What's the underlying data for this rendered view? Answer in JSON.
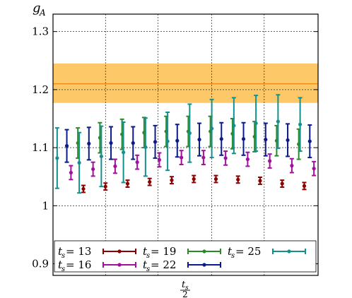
{
  "chart_data": {
    "type": "scatter",
    "title": "",
    "ylabel": "g",
    "ylabel_sub": "A",
    "xlabel_num": "t",
    "xlabel_num_sub": "s",
    "xlabel_den": "2",
    "ylim": [
      0.88,
      1.33
    ],
    "yticks": [
      0.9,
      1,
      1.1,
      1.2,
      1.3
    ],
    "ytick_labels": [
      "0.9",
      "1",
      "1.1",
      "1.2",
      "1.3"
    ],
    "grid": true,
    "legend_placement": "bottom",
    "band": {
      "center": 1.21,
      "low": 1.177,
      "high": 1.245,
      "color": "#fdbf4e",
      "line_color": "#ef8a1a"
    },
    "series": [
      {
        "name": "t_s = 13",
        "label_var": "t",
        "label_sub": "s",
        "label_val": " = 13",
        "color": "#8b0000",
        "x": [
          2.2,
          3.8,
          5.4,
          7.0,
          8.6,
          10.2,
          11.8,
          13.4,
          15.0,
          16.6,
          18.2
        ],
        "y": [
          1.029,
          1.033,
          1.038,
          1.041,
          1.044,
          1.046,
          1.046,
          1.045,
          1.043,
          1.038,
          1.034
        ],
        "err": [
          0.006,
          0.006,
          0.006,
          0.006,
          0.006,
          0.006,
          0.006,
          0.006,
          0.006,
          0.006,
          0.006
        ]
      },
      {
        "name": "t_s = 16",
        "label_var": "t",
        "label_sub": "s",
        "label_val": " = 16",
        "color": "#a0109c",
        "x": [
          1.3,
          2.9,
          4.5,
          6.1,
          7.7,
          9.3,
          10.9,
          12.5,
          14.1,
          15.7,
          17.3,
          18.9
        ],
        "y": [
          1.057,
          1.063,
          1.068,
          1.075,
          1.079,
          1.083,
          1.083,
          1.082,
          1.08,
          1.077,
          1.069,
          1.064
        ],
        "err": [
          0.012,
          0.012,
          0.012,
          0.012,
          0.012,
          0.012,
          0.012,
          0.012,
          0.012,
          0.012,
          0.012,
          0.012
        ]
      },
      {
        "name": "t_s = 19",
        "label_var": "t",
        "label_sub": "s",
        "label_val": " = 19",
        "color": "#2a8a2a",
        "x": [
          1.8,
          3.4,
          5.0,
          6.6,
          8.2,
          9.8,
          11.4,
          13.0,
          14.6,
          16.2,
          17.8
        ],
        "y": [
          1.108,
          1.117,
          1.123,
          1.126,
          1.128,
          1.128,
          1.128,
          1.124,
          1.119,
          1.112,
          1.106
        ],
        "err": [
          0.026,
          0.026,
          0.026,
          0.026,
          0.026,
          0.026,
          0.026,
          0.026,
          0.026,
          0.026,
          0.026
        ]
      },
      {
        "name": "t_s = 22",
        "label_var": "t",
        "label_sub": "s",
        "label_val": " = 22",
        "color": "#0a1a8c",
        "x": [
          1.0,
          2.6,
          4.2,
          5.8,
          7.4,
          9.0,
          10.6,
          12.2,
          13.8,
          15.4,
          17.0,
          18.6
        ],
        "y": [
          1.103,
          1.107,
          1.108,
          1.108,
          1.11,
          1.112,
          1.114,
          1.115,
          1.115,
          1.114,
          1.113,
          1.111
        ],
        "err": [
          0.028,
          0.028,
          0.028,
          0.028,
          0.028,
          0.028,
          0.028,
          0.028,
          0.028,
          0.028,
          0.028,
          0.028
        ]
      },
      {
        "name": "t_s = 25",
        "label_var": "t",
        "label_sub": "s",
        "label_val": " = 25",
        "color": "#14908c",
        "x": [
          0.3,
          1.9,
          3.5,
          5.1,
          6.7,
          8.3,
          9.9,
          11.5,
          13.1,
          14.7,
          16.3,
          17.9
        ],
        "y": [
          1.082,
          1.074,
          1.085,
          1.092,
          1.101,
          1.111,
          1.125,
          1.133,
          1.138,
          1.142,
          1.145,
          1.14
        ],
        "err": [
          0.052,
          0.052,
          0.052,
          0.052,
          0.05,
          0.05,
          0.05,
          0.05,
          0.048,
          0.048,
          0.046,
          0.046
        ]
      }
    ]
  }
}
